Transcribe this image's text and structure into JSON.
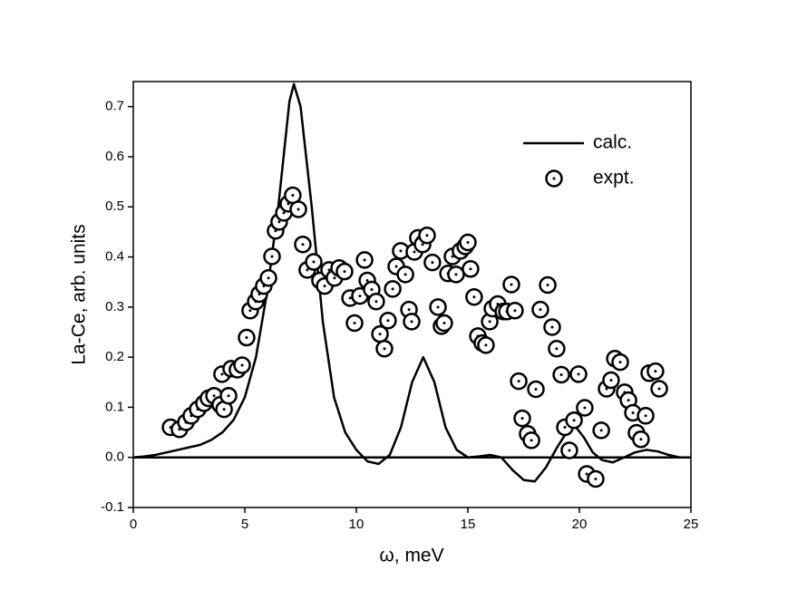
{
  "chart_data": {
    "type": "line",
    "x_label": "ω, meV",
    "y_label": "La-Ce, arb. units",
    "xlim": [
      0,
      25
    ],
    "ylim": [
      -0.1,
      0.75
    ],
    "xticks": [
      0,
      5,
      10,
      15,
      20,
      25
    ],
    "yticks": [
      -0.1,
      {
        "value": 0,
        "label": "0.0"
      },
      0.1,
      0.2,
      0.3,
      0.4,
      0.5,
      0.6,
      0.7
    ],
    "zero_line": true,
    "legend": "upper right",
    "series": [
      {
        "name": "calc.",
        "kind": "line",
        "color": "#000000",
        "x": [
          0,
          0.5,
          1,
          1.5,
          2,
          2.5,
          3,
          3.5,
          4,
          4.5,
          5,
          5.5,
          6,
          6.5,
          7,
          7.2,
          7.5,
          8,
          8.5,
          9,
          9.5,
          10,
          10.5,
          11,
          11.5,
          12,
          12.5,
          13,
          13.5,
          14,
          14.5,
          15,
          15.5,
          16,
          16.5,
          17,
          17.5,
          18,
          18.5,
          19,
          19.5,
          19.8,
          20.2,
          20.6,
          21,
          21.5,
          22,
          22.5,
          23,
          23.5,
          24,
          24.5,
          25
        ],
        "values": [
          0,
          0.002,
          0.005,
          0.01,
          0.015,
          0.02,
          0.025,
          0.035,
          0.05,
          0.075,
          0.12,
          0.2,
          0.33,
          0.5,
          0.71,
          0.745,
          0.7,
          0.5,
          0.27,
          0.12,
          0.05,
          0.015,
          -0.008,
          -0.013,
          0.005,
          0.06,
          0.15,
          0.2,
          0.15,
          0.06,
          0.015,
          0.0,
          0.002,
          0.005,
          0.0,
          -0.025,
          -0.045,
          -0.048,
          -0.02,
          0.02,
          0.055,
          0.063,
          0.04,
          0.01,
          -0.005,
          -0.01,
          0.0,
          0.01,
          0.015,
          0.012,
          0.005,
          0.0,
          0.0
        ]
      },
      {
        "name": "expt.",
        "kind": "scatter",
        "color": "#000000",
        "x": [
          1.67,
          2.07,
          2.36,
          2.6,
          2.89,
          3.17,
          3.37,
          3.62,
          3.9,
          3.98,
          4.07,
          4.27,
          4.39,
          4.67,
          4.88,
          5.08,
          5.24,
          5.49,
          5.65,
          5.85,
          6.06,
          6.22,
          6.38,
          6.54,
          6.75,
          6.95,
          7.15,
          7.4,
          7.6,
          7.8,
          8.09,
          8.37,
          8.58,
          8.78,
          9.02,
          9.23,
          9.47,
          9.72,
          9.92,
          10.16,
          10.37,
          10.49,
          10.69,
          10.89,
          11.06,
          11.26,
          11.42,
          11.63,
          11.79,
          11.99,
          12.2,
          12.36,
          12.48,
          12.6,
          12.76,
          12.97,
          13.17,
          13.41,
          13.66,
          13.82,
          13.94,
          14.11,
          14.31,
          14.47,
          14.67,
          14.88,
          15.0,
          15.12,
          15.28,
          15.45,
          15.65,
          15.81,
          15.98,
          16.1,
          16.34,
          16.59,
          16.75,
          16.95,
          17.11,
          17.28,
          17.44,
          17.68,
          17.85,
          18.05,
          18.25,
          18.58,
          18.78,
          18.98,
          19.19,
          19.35,
          19.55,
          19.76,
          19.96,
          20.24,
          20.33,
          20.73,
          20.98,
          21.22,
          21.42,
          21.59,
          21.83,
          22.03,
          22.2,
          22.4,
          22.56,
          22.76,
          22.97,
          23.13,
          23.41,
          23.58
        ],
        "values": [
          0.06,
          0.056,
          0.07,
          0.083,
          0.096,
          0.108,
          0.118,
          0.123,
          0.105,
          0.166,
          0.096,
          0.123,
          0.177,
          0.175,
          0.184,
          0.239,
          0.293,
          0.311,
          0.326,
          0.342,
          0.358,
          0.401,
          0.452,
          0.47,
          0.488,
          0.506,
          0.523,
          0.495,
          0.425,
          0.374,
          0.39,
          0.353,
          0.342,
          0.374,
          0.358,
          0.378,
          0.371,
          0.318,
          0.268,
          0.322,
          0.394,
          0.353,
          0.335,
          0.311,
          0.246,
          0.217,
          0.273,
          0.336,
          0.381,
          0.412,
          0.365,
          0.295,
          0.271,
          0.41,
          0.438,
          0.425,
          0.443,
          0.389,
          0.3,
          0.262,
          0.268,
          0.367,
          0.401,
          0.365,
          0.412,
          0.421,
          0.429,
          0.376,
          0.32,
          0.242,
          0.228,
          0.224,
          0.271,
          0.297,
          0.306,
          0.291,
          0.291,
          0.345,
          0.293,
          0.152,
          0.078,
          0.047,
          0.034,
          0.136,
          0.295,
          0.344,
          0.26,
          0.217,
          0.165,
          0.06,
          0.014,
          0.074,
          0.166,
          0.099,
          -0.033,
          -0.043,
          0.054,
          0.137,
          0.154,
          0.197,
          0.19,
          0.13,
          0.114,
          0.089,
          0.049,
          0.036,
          0.083,
          0.168,
          0.172,
          0.137
        ]
      }
    ]
  }
}
